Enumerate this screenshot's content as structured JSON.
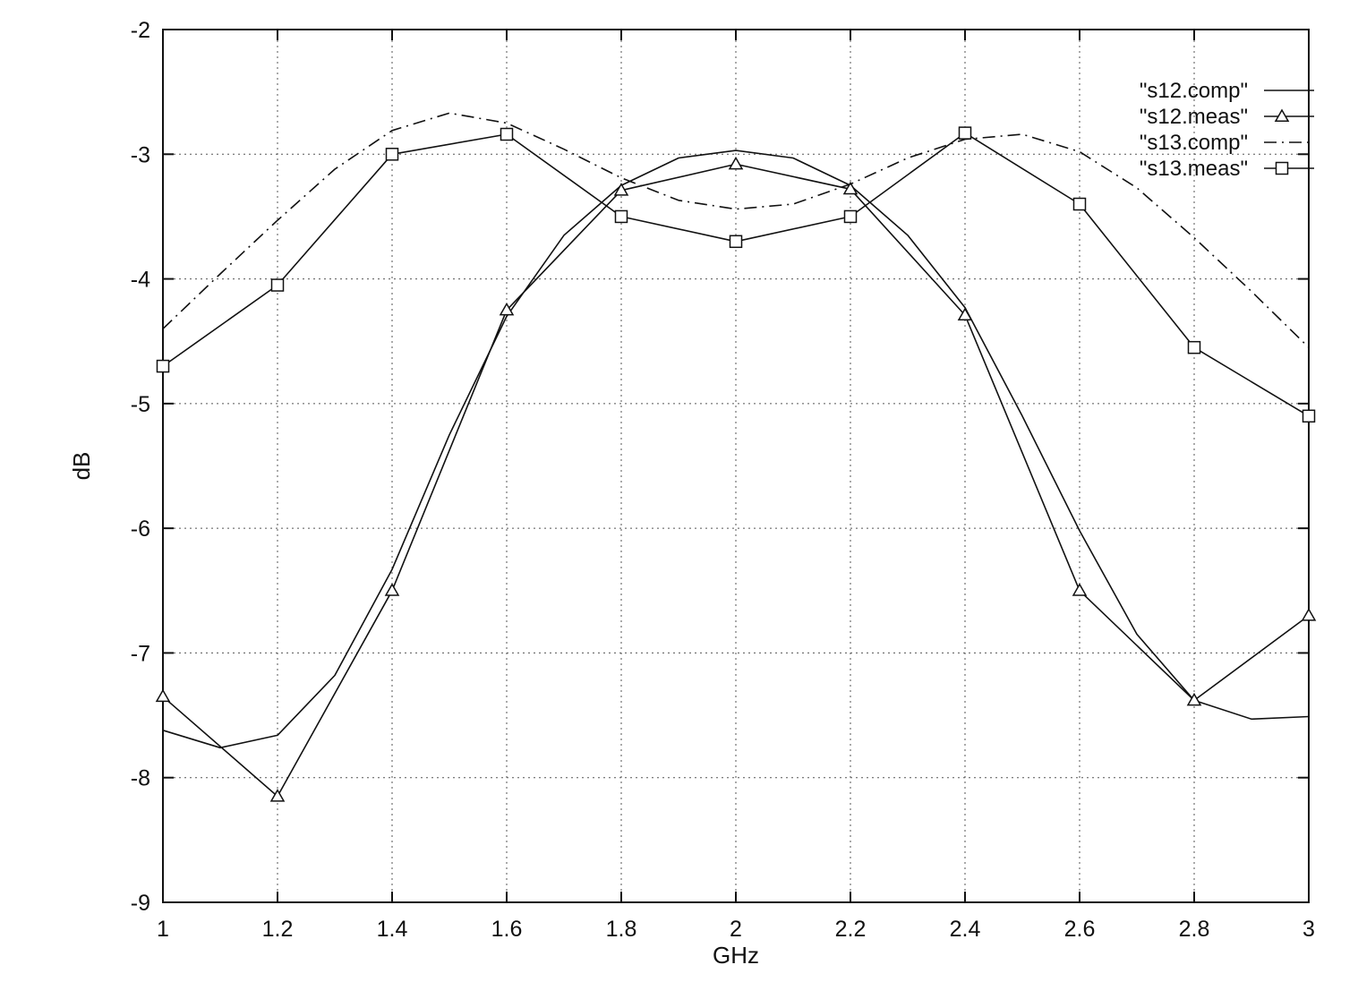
{
  "chart_data": {
    "type": "line",
    "title": "",
    "xlabel": "GHz",
    "ylabel": "dB",
    "xlim": [
      1,
      3
    ],
    "ylim": [
      -9,
      -2
    ],
    "xticks": [
      "1",
      "1.2",
      "1.4",
      "1.6",
      "1.8",
      "2",
      "2.2",
      "2.4",
      "2.6",
      "2.8",
      "3"
    ],
    "xtick_values": [
      1,
      1.2,
      1.4,
      1.6,
      1.8,
      2,
      2.2,
      2.4,
      2.6,
      2.8,
      3
    ],
    "yticks": [
      "-2",
      "-3",
      "-4",
      "-5",
      "-6",
      "-7",
      "-8",
      "-9"
    ],
    "ytick_values": [
      -2,
      -3,
      -4,
      -5,
      -6,
      -7,
      -8,
      -9
    ],
    "grid": true,
    "legend_position": "top-right",
    "series": [
      {
        "name": "\"s12.comp\"",
        "style": "solid",
        "marker": "none",
        "x": [
          1.0,
          1.1,
          1.2,
          1.3,
          1.4,
          1.5,
          1.6,
          1.7,
          1.8,
          1.9,
          2.0,
          2.1,
          2.2,
          2.3,
          2.4,
          2.5,
          2.6,
          2.7,
          2.8,
          2.9,
          3.0
        ],
        "y": [
          -7.62,
          -7.76,
          -7.66,
          -7.18,
          -6.33,
          -5.25,
          -4.3,
          -3.65,
          -3.25,
          -3.03,
          -2.97,
          -3.03,
          -3.25,
          -3.65,
          -4.23,
          -5.1,
          -6.02,
          -6.85,
          -7.38,
          -7.53,
          -7.51
        ]
      },
      {
        "name": "\"s12.meas\"",
        "style": "solid",
        "marker": "triangle",
        "x": [
          1.0,
          1.2,
          1.4,
          1.6,
          1.8,
          2.0,
          2.2,
          2.4,
          2.6,
          2.8,
          3.0
        ],
        "y": [
          -7.35,
          -8.15,
          -6.5,
          -4.25,
          -3.29,
          -3.08,
          -3.28,
          -4.29,
          -6.5,
          -7.38,
          -6.7
        ]
      },
      {
        "name": "\"s13.comp\"",
        "style": "dash-dot",
        "marker": "none",
        "x": [
          1.0,
          1.1,
          1.2,
          1.3,
          1.4,
          1.5,
          1.6,
          1.7,
          1.8,
          1.9,
          2.0,
          2.1,
          2.2,
          2.3,
          2.4,
          2.5,
          2.6,
          2.7,
          2.8,
          2.9,
          3.0
        ],
        "y": [
          -4.4,
          -3.96,
          -3.53,
          -3.12,
          -2.81,
          -2.67,
          -2.75,
          -2.96,
          -3.19,
          -3.37,
          -3.44,
          -3.4,
          -3.24,
          -3.03,
          -2.88,
          -2.84,
          -2.98,
          -3.27,
          -3.67,
          -4.1,
          -4.55
        ]
      },
      {
        "name": "\"s13.meas\"",
        "style": "solid",
        "marker": "square",
        "x": [
          1.0,
          1.2,
          1.4,
          1.6,
          1.8,
          2.0,
          2.2,
          2.4,
          2.6,
          2.8,
          3.0
        ],
        "y": [
          -4.7,
          -4.05,
          -3.0,
          -2.84,
          -3.5,
          -3.7,
          -3.5,
          -2.83,
          -3.4,
          -4.55,
          -5.1
        ]
      }
    ]
  }
}
